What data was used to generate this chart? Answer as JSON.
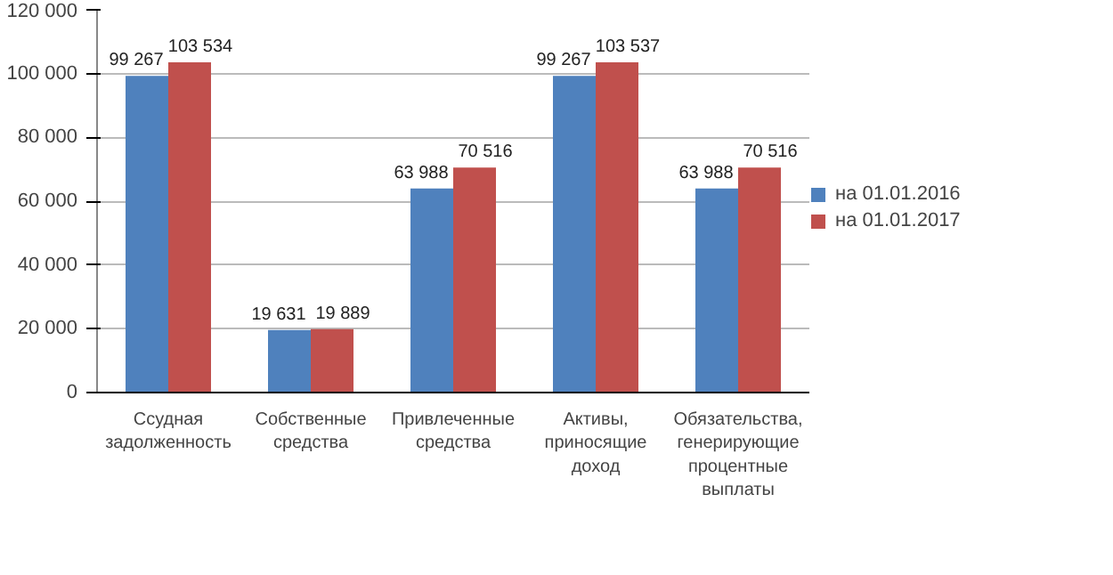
{
  "chart_data": {
    "type": "bar",
    "categories": [
      "Ссудная задолженность",
      "Собственные средства",
      "Привлеченные средства",
      "Активы, приносящие доход",
      "Обязательства, генерирующие процентные выплаты"
    ],
    "series": [
      {
        "name": "на 01.01.2016",
        "color": "#4f81bd",
        "values": [
          99267,
          19631,
          63988,
          99267,
          63988
        ],
        "value_labels": [
          "99 267",
          "19 631",
          "63 988",
          "99 267",
          "63 988"
        ]
      },
      {
        "name": "на 01.01.2017",
        "color": "#c0504d",
        "values": [
          103534,
          19889,
          70516,
          103537,
          70516
        ],
        "value_labels": [
          "103 534",
          "19 889",
          "70 516",
          "103 537",
          "70 516"
        ]
      }
    ],
    "ylim": [
      0,
      120000
    ],
    "yticks": [
      0,
      {
        "value": 20000,
        "label": "20 000"
      },
      {
        "value": 40000,
        "label": "40 000"
      },
      {
        "value": 60000,
        "label": "60 000"
      },
      {
        "value": 80000,
        "label": "80 000"
      },
      {
        "value": 100000,
        "label": "100 000"
      },
      {
        "value": 120000,
        "label": "120 000"
      }
    ],
    "grid": "y",
    "legend": "right"
  }
}
